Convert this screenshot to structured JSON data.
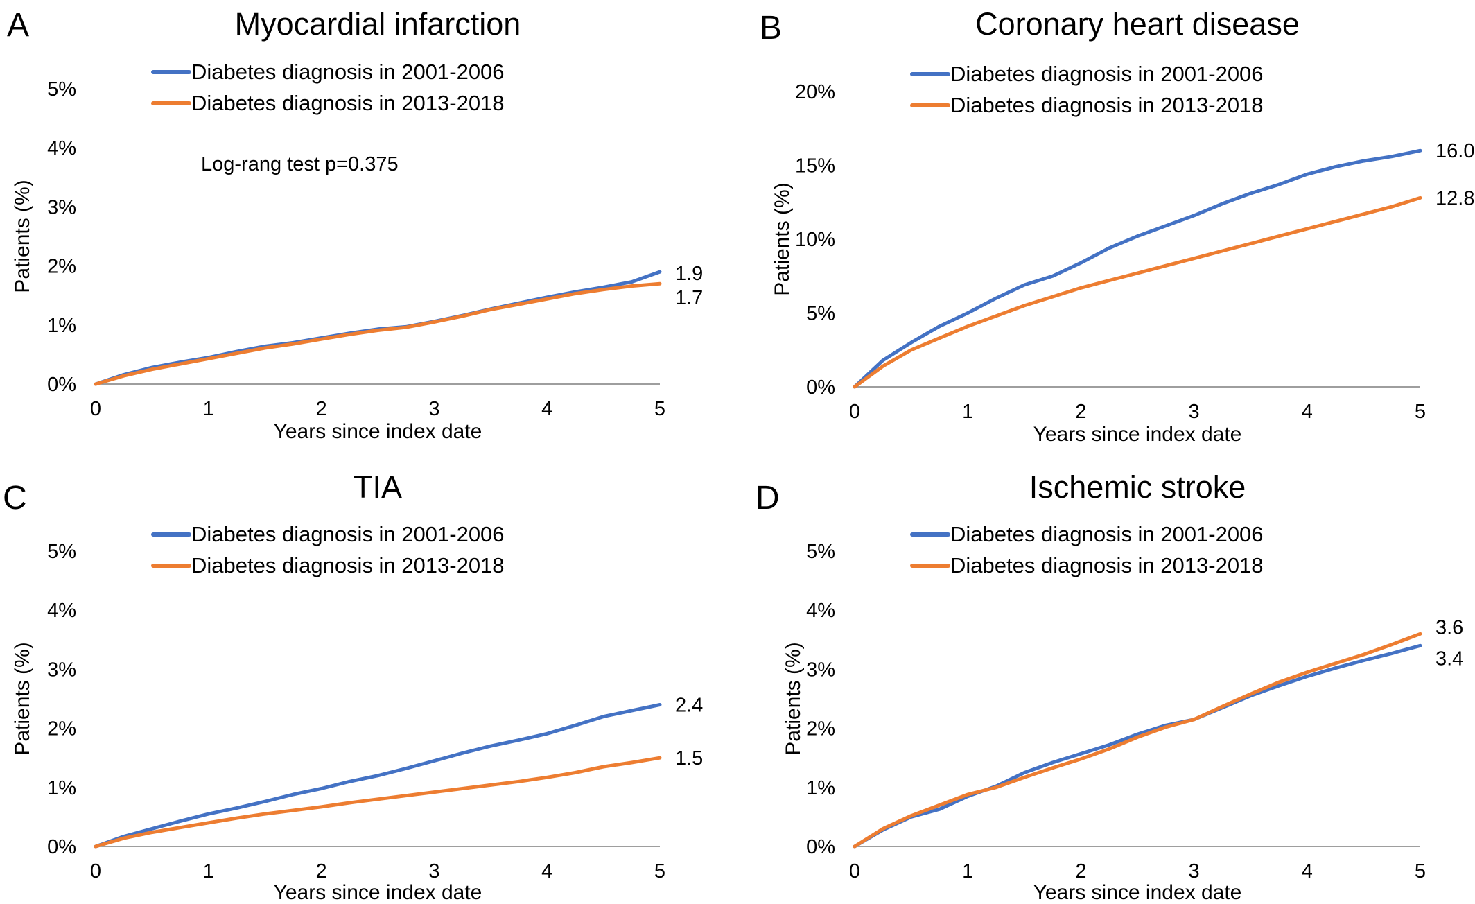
{
  "chart_data": [
    {
      "panel": "A",
      "type": "line",
      "title": "Myocardial infarction",
      "xlabel": "Years since index date",
      "ylabel": "Patients (%)",
      "xlim": [
        0,
        5
      ],
      "ylim": [
        0,
        5
      ],
      "x_ticks": [
        "0",
        "1",
        "2",
        "3",
        "4",
        "5"
      ],
      "y_ticks": [
        "0%",
        "1%",
        "2%",
        "3%",
        "4%",
        "5%"
      ],
      "grid": false,
      "legend_position": "top",
      "annotation": "Log-rang test p=0.375",
      "x": [
        0,
        0.25,
        0.5,
        0.75,
        1,
        1.25,
        1.5,
        1.75,
        2,
        2.25,
        2.5,
        2.75,
        3,
        3.25,
        3.5,
        3.75,
        4,
        4.25,
        4.5,
        4.75,
        5
      ],
      "series": [
        {
          "name": "Diabetes diagnosis in 2001-2006",
          "color": "#4472C4",
          "values": [
            0,
            0.16,
            0.28,
            0.37,
            0.45,
            0.55,
            0.64,
            0.7,
            0.78,
            0.86,
            0.93,
            0.97,
            1.06,
            1.16,
            1.27,
            1.37,
            1.47,
            1.56,
            1.64,
            1.73,
            1.9
          ],
          "end_label": "1.9"
        },
        {
          "name": "Diabetes diagnosis in 2013-2018",
          "color": "#ED7D31",
          "values": [
            0,
            0.14,
            0.25,
            0.34,
            0.43,
            0.52,
            0.61,
            0.68,
            0.76,
            0.84,
            0.91,
            0.96,
            1.05,
            1.15,
            1.26,
            1.35,
            1.44,
            1.53,
            1.6,
            1.66,
            1.7
          ],
          "end_label": "1.7"
        }
      ]
    },
    {
      "panel": "B",
      "type": "line",
      "title": "Coronary heart disease",
      "xlabel": "Years since index date",
      "ylabel": "Patients (%)",
      "xlim": [
        0,
        5
      ],
      "ylim": [
        0,
        20
      ],
      "x_ticks": [
        "0",
        "1",
        "2",
        "3",
        "4",
        "5"
      ],
      "y_ticks": [
        "0%",
        "5%",
        "10%",
        "15%",
        "20%"
      ],
      "grid": false,
      "legend_position": "top",
      "x": [
        0,
        0.25,
        0.5,
        0.75,
        1,
        1.25,
        1.5,
        1.75,
        2,
        2.25,
        2.5,
        2.75,
        3,
        3.25,
        3.5,
        3.75,
        4,
        4.25,
        4.5,
        4.75,
        5
      ],
      "series": [
        {
          "name": "Diabetes diagnosis in 2001-2006",
          "color": "#4472C4",
          "values": [
            0,
            1.8,
            3.0,
            4.1,
            5.0,
            6.0,
            6.9,
            7.5,
            8.4,
            9.4,
            10.2,
            10.9,
            11.6,
            12.4,
            13.1,
            13.7,
            14.4,
            14.9,
            15.3,
            15.6,
            16.0
          ],
          "end_label": "16.0"
        },
        {
          "name": "Diabetes diagnosis in 2013-2018",
          "color": "#ED7D31",
          "values": [
            0,
            1.4,
            2.5,
            3.3,
            4.1,
            4.8,
            5.5,
            6.1,
            6.7,
            7.2,
            7.7,
            8.2,
            8.7,
            9.2,
            9.7,
            10.2,
            10.7,
            11.2,
            11.7,
            12.2,
            12.8
          ],
          "end_label": "12.8"
        }
      ]
    },
    {
      "panel": "C",
      "type": "line",
      "title": "TIA",
      "xlabel": "Years since index date",
      "ylabel": "Patients (%)",
      "xlim": [
        0,
        5
      ],
      "ylim": [
        0,
        5
      ],
      "x_ticks": [
        "0",
        "1",
        "2",
        "3",
        "4",
        "5"
      ],
      "y_ticks": [
        "0%",
        "1%",
        "2%",
        "3%",
        "4%",
        "5%"
      ],
      "grid": false,
      "legend_position": "top",
      "x": [
        0,
        0.25,
        0.5,
        0.75,
        1,
        1.25,
        1.5,
        1.75,
        2,
        2.25,
        2.5,
        2.75,
        3,
        3.25,
        3.5,
        3.75,
        4,
        4.25,
        4.5,
        4.75,
        5
      ],
      "series": [
        {
          "name": "Diabetes diagnosis in 2001-2006",
          "color": "#4472C4",
          "values": [
            0,
            0.17,
            0.3,
            0.43,
            0.55,
            0.65,
            0.76,
            0.88,
            0.98,
            1.1,
            1.2,
            1.32,
            1.45,
            1.58,
            1.7,
            1.8,
            1.91,
            2.05,
            2.2,
            2.3,
            2.4
          ],
          "end_label": "2.4"
        },
        {
          "name": "Diabetes diagnosis in 2013-2018",
          "color": "#ED7D31",
          "values": [
            0,
            0.14,
            0.24,
            0.32,
            0.4,
            0.48,
            0.55,
            0.61,
            0.67,
            0.74,
            0.8,
            0.86,
            0.92,
            0.98,
            1.04,
            1.1,
            1.17,
            1.25,
            1.35,
            1.42,
            1.5
          ],
          "end_label": "1.5"
        }
      ]
    },
    {
      "panel": "D",
      "type": "line",
      "title": "Ischemic stroke",
      "xlabel": "Years since index date",
      "ylabel": "Patients (%)",
      "xlim": [
        0,
        5
      ],
      "ylim": [
        0,
        5
      ],
      "x_ticks": [
        "0",
        "1",
        "2",
        "3",
        "4",
        "5"
      ],
      "y_ticks": [
        "0%",
        "1%",
        "2%",
        "3%",
        "4%",
        "5%"
      ],
      "grid": false,
      "legend_position": "top",
      "x": [
        0,
        0.25,
        0.5,
        0.75,
        1,
        1.25,
        1.5,
        1.75,
        2,
        2.25,
        2.5,
        2.75,
        3,
        3.25,
        3.5,
        3.75,
        4,
        4.25,
        4.5,
        4.75,
        5
      ],
      "series": [
        {
          "name": "Diabetes diagnosis in 2001-2006",
          "color": "#4472C4",
          "values": [
            0,
            0.28,
            0.5,
            0.63,
            0.85,
            1.02,
            1.25,
            1.42,
            1.57,
            1.72,
            1.9,
            2.05,
            2.15,
            2.35,
            2.55,
            2.72,
            2.88,
            3.02,
            3.15,
            3.27,
            3.4
          ],
          "end_label": "3.4"
        },
        {
          "name": "Diabetes diagnosis in 2013-2018",
          "color": "#ED7D31",
          "values": [
            0,
            0.3,
            0.52,
            0.7,
            0.88,
            1.0,
            1.17,
            1.33,
            1.48,
            1.65,
            1.85,
            2.02,
            2.15,
            2.37,
            2.58,
            2.78,
            2.95,
            3.1,
            3.25,
            3.42,
            3.6
          ],
          "end_label": "3.6"
        }
      ]
    }
  ]
}
